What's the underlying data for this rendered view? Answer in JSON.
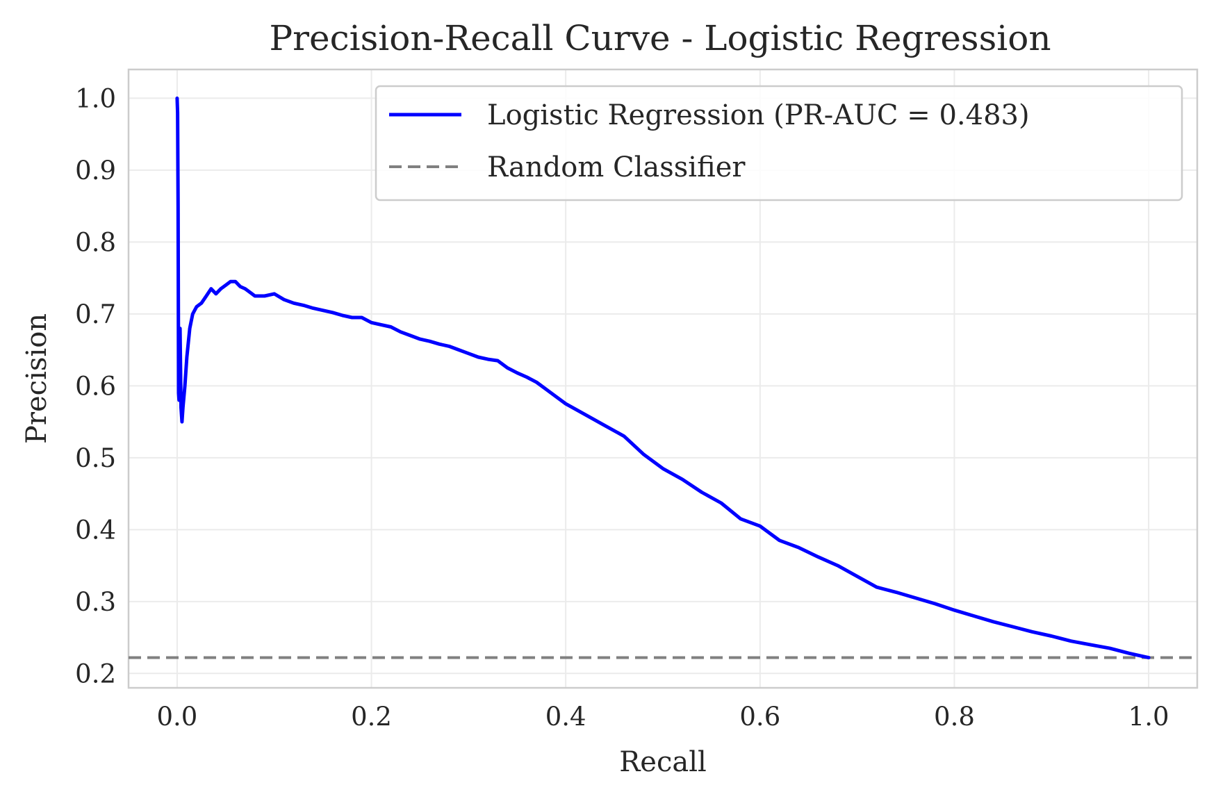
{
  "chart_data": {
    "type": "line",
    "title": "Precision-Recall Curve - Logistic Regression",
    "xlabel": "Recall",
    "ylabel": "Precision",
    "xlim": [
      -0.05,
      1.05
    ],
    "ylim": [
      0.18,
      1.04
    ],
    "x_ticks": [
      "0.0",
      "0.2",
      "0.4",
      "0.6",
      "0.8",
      "1.0"
    ],
    "y_ticks": [
      "0.2",
      "0.3",
      "0.4",
      "0.5",
      "0.6",
      "0.7",
      "0.8",
      "0.9",
      "1.0"
    ],
    "grid": true,
    "legend_position": "top-right",
    "series": [
      {
        "name": "Logistic Regression (PR-AUC = 0.483)",
        "color": "#0000ff",
        "style": "solid",
        "x": [
          0.0,
          0.0005,
          0.001,
          0.0015,
          0.002,
          0.003,
          0.004,
          0.005,
          0.006,
          0.008,
          0.01,
          0.013,
          0.016,
          0.02,
          0.025,
          0.03,
          0.035,
          0.04,
          0.045,
          0.05,
          0.055,
          0.06,
          0.065,
          0.07,
          0.075,
          0.08,
          0.09,
          0.1,
          0.11,
          0.12,
          0.13,
          0.14,
          0.15,
          0.16,
          0.17,
          0.18,
          0.19,
          0.2,
          0.21,
          0.22,
          0.23,
          0.24,
          0.25,
          0.26,
          0.27,
          0.28,
          0.29,
          0.3,
          0.31,
          0.32,
          0.33,
          0.34,
          0.35,
          0.36,
          0.37,
          0.38,
          0.39,
          0.4,
          0.42,
          0.44,
          0.46,
          0.48,
          0.5,
          0.52,
          0.54,
          0.56,
          0.58,
          0.6,
          0.62,
          0.64,
          0.66,
          0.68,
          0.7,
          0.72,
          0.74,
          0.76,
          0.78,
          0.8,
          0.82,
          0.84,
          0.86,
          0.88,
          0.9,
          0.92,
          0.94,
          0.96,
          0.98,
          1.0
        ],
        "y": [
          1.0,
          0.98,
          0.85,
          0.59,
          0.58,
          0.68,
          0.57,
          0.55,
          0.57,
          0.6,
          0.64,
          0.68,
          0.7,
          0.71,
          0.715,
          0.725,
          0.735,
          0.728,
          0.735,
          0.74,
          0.745,
          0.745,
          0.738,
          0.735,
          0.73,
          0.725,
          0.725,
          0.728,
          0.72,
          0.715,
          0.712,
          0.708,
          0.705,
          0.702,
          0.698,
          0.695,
          0.695,
          0.688,
          0.685,
          0.682,
          0.675,
          0.67,
          0.665,
          0.662,
          0.658,
          0.655,
          0.65,
          0.645,
          0.64,
          0.637,
          0.635,
          0.625,
          0.618,
          0.612,
          0.605,
          0.595,
          0.585,
          0.575,
          0.56,
          0.545,
          0.53,
          0.505,
          0.485,
          0.47,
          0.452,
          0.437,
          0.415,
          0.405,
          0.385,
          0.375,
          0.362,
          0.35,
          0.335,
          0.32,
          0.313,
          0.305,
          0.297,
          0.288,
          0.28,
          0.272,
          0.265,
          0.258,
          0.252,
          0.245,
          0.24,
          0.235,
          0.228,
          0.222
        ]
      },
      {
        "name": "Random Classifier",
        "color": "#808080",
        "style": "dashed",
        "x": [
          -0.05,
          1.05
        ],
        "y": [
          0.222,
          0.222
        ]
      }
    ]
  }
}
